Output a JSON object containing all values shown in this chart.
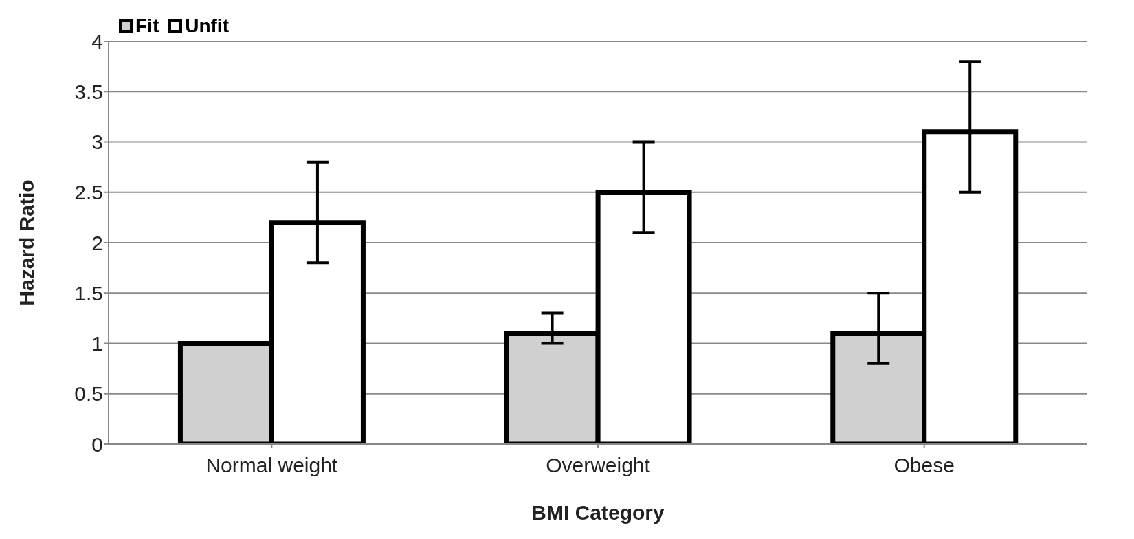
{
  "chart_data": {
    "type": "bar",
    "xlabel": "BMI Category",
    "ylabel": "Hazard Ratio",
    "categories": [
      "Normal weight",
      "Overweight",
      "Obese"
    ],
    "series": [
      {
        "name": "Fit",
        "color": "#d0d0d0",
        "values": [
          1,
          1.1,
          1.1
        ],
        "errors": [
          null,
          [
            1.0,
            1.3
          ],
          [
            0.8,
            1.5
          ]
        ]
      },
      {
        "name": "Unfit",
        "color": "#ffffff",
        "values": [
          2.2,
          2.5,
          3.1
        ],
        "errors": [
          [
            1.8,
            2.8
          ],
          [
            2.1,
            3.0
          ],
          [
            2.5,
            3.8
          ]
        ]
      }
    ],
    "ylim": [
      0,
      4
    ],
    "yticks": [
      0,
      0.5,
      1,
      1.5,
      2,
      2.5,
      3,
      3.5,
      4
    ],
    "grid": "y",
    "legend": "top left"
  }
}
